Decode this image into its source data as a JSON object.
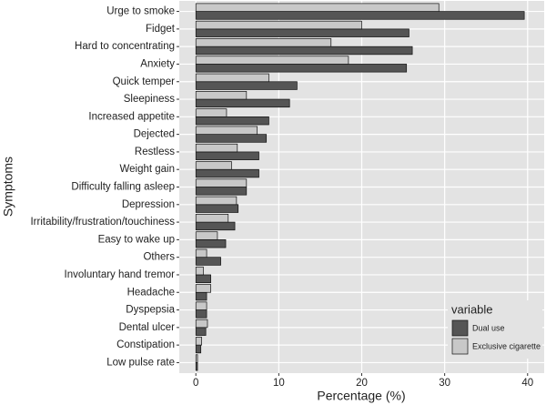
{
  "chart_data": {
    "type": "bar",
    "orientation": "horizontal",
    "x_label": "Percentage (%)",
    "y_label": "Symptoms",
    "categories": [
      "Urge to smoke",
      "Fidget",
      "Hard to concentrating",
      "Anxiety",
      "Quick temper",
      "Sleepiness",
      "Increased appetite",
      "Dejected",
      "Restless",
      "Weight gain",
      "Difficulty falling asleep",
      "Depression",
      "Irritability/frustration/touchiness",
      "Easy to wake up",
      "Others",
      "Involuntary hand tremor",
      "Headache",
      "Dyspepsia",
      "Dental ulcer",
      "Constipation",
      "Low pulse rate"
    ],
    "series": [
      {
        "name": "Dual use",
        "color": "#555555",
        "values": [
          39.6,
          25.7,
          26.1,
          25.4,
          12.2,
          11.3,
          8.8,
          8.5,
          7.6,
          7.6,
          6.1,
          5.1,
          4.7,
          3.6,
          3.0,
          1.8,
          1.3,
          1.3,
          1.2,
          0.6,
          0.2
        ]
      },
      {
        "name": "Exclusive cigarette",
        "color": "#c8c8c8",
        "values": [
          29.3,
          20.0,
          16.3,
          18.4,
          8.8,
          6.1,
          3.7,
          7.4,
          5.0,
          4.3,
          6.1,
          4.9,
          3.9,
          2.6,
          1.3,
          0.9,
          1.8,
          1.3,
          1.4,
          0.7,
          0.2
        ]
      }
    ],
    "legend_title": "variable",
    "legend": "bottom-right",
    "xlim": [
      -2,
      42
    ],
    "xticks": [
      0,
      10,
      20,
      30,
      40
    ],
    "grid": true
  }
}
